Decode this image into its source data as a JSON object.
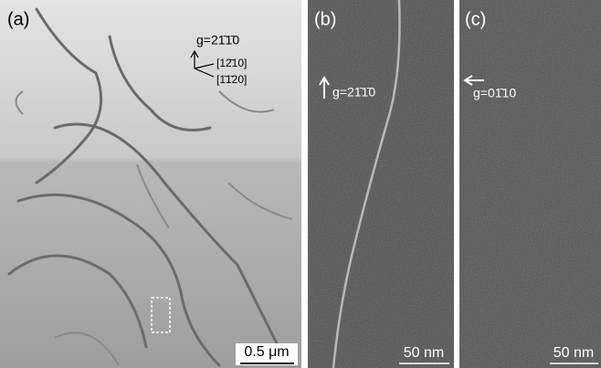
{
  "panel_a": {
    "label": "(a)",
    "g_vector": "g=21̄1̄0",
    "direction_1": "[12̄10]",
    "direction_2": "[1̄1̄20]",
    "scale_bar": "0.5 μm"
  },
  "panel_b": {
    "label": "(b)",
    "g_vector": "g=21̄1̄0",
    "scale_bar": "50 nm"
  },
  "panel_c": {
    "label": "(c)",
    "g_vector": "g=01̄10",
    "scale_bar": "50 nm"
  }
}
